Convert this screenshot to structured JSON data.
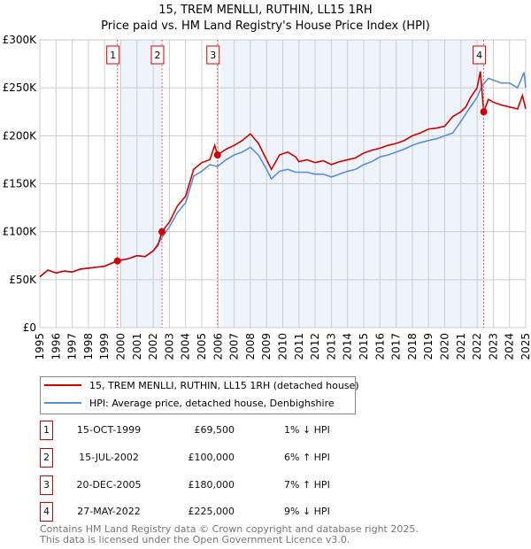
{
  "chart_data": {
    "type": "line",
    "title": "15, TREM MENLLI, RUTHIN, LL15 1RH",
    "subtitle": "Price paid vs. HM Land Registry's House Price Index (HPI)",
    "xlim": [
      1995,
      2025
    ],
    "ylim": [
      0,
      300000
    ],
    "x_ticks": [
      "1995",
      "1996",
      "1997",
      "1998",
      "1999",
      "2000",
      "2001",
      "2002",
      "2003",
      "2004",
      "2005",
      "2006",
      "2007",
      "2008",
      "2009",
      "2010",
      "2011",
      "2012",
      "2013",
      "2014",
      "2015",
      "2016",
      "2017",
      "2018",
      "2019",
      "2020",
      "2021",
      "2022",
      "2023",
      "2024",
      "2025"
    ],
    "y_ticks": [
      {
        "v": 0,
        "label": "£0"
      },
      {
        "v": 50000,
        "label": "£50K"
      },
      {
        "v": 100000,
        "label": "£100K"
      },
      {
        "v": 150000,
        "label": "£150K"
      },
      {
        "v": 200000,
        "label": "£200K"
      },
      {
        "v": 250000,
        "label": "£250K"
      },
      {
        "v": 300000,
        "label": "£300K"
      }
    ],
    "grid": true,
    "series": [
      {
        "name": "15, TREM MENLLI, RUTHIN, LL15 1RH (detached house)",
        "color": "#cc0000",
        "x": [
          1995,
          1995.5,
          1996,
          1996.5,
          1997,
          1997.5,
          1998,
          1998.5,
          1999,
          1999.79,
          2000.5,
          2001,
          2001.5,
          2002,
          2002.3,
          2002.54,
          2003,
          2003.5,
          2004,
          2004.5,
          2005,
          2005.5,
          2005.8,
          2005.97,
          2006.5,
          2007,
          2007.5,
          2008,
          2008.5,
          2009,
          2009.3,
          2009.8,
          2010.3,
          2010.8,
          2011,
          2011.5,
          2012,
          2012.5,
          2013,
          2013.5,
          2014,
          2014.5,
          2015,
          2015.5,
          2016,
          2016.5,
          2017,
          2017.5,
          2018,
          2018.5,
          2019,
          2019.5,
          2020,
          2020.5,
          2021,
          2021.3,
          2021.6,
          2022,
          2022.2,
          2022.41,
          2022.7,
          2023,
          2023.5,
          2024,
          2024.5,
          2024.8,
          2025
        ],
        "y": [
          53000,
          60000,
          57000,
          59000,
          58000,
          61000,
          62000,
          63000,
          64000,
          69500,
          72000,
          75000,
          74000,
          80000,
          86000,
          100000,
          110000,
          127000,
          137000,
          165000,
          172000,
          175000,
          190000,
          180000,
          186000,
          190000,
          195000,
          202000,
          192000,
          175000,
          165000,
          180000,
          183000,
          178000,
          173000,
          175000,
          172000,
          174000,
          170000,
          173000,
          175000,
          177000,
          182000,
          185000,
          187000,
          190000,
          192000,
          195000,
          200000,
          203000,
          207000,
          208000,
          210000,
          220000,
          225000,
          230000,
          240000,
          250000,
          267000,
          225000,
          238000,
          235000,
          232000,
          230000,
          228000,
          242000,
          228000
        ]
      },
      {
        "name": "HPI: Average price, detached house, Denbighshire",
        "color": "#5b8ed6",
        "x": [
          1995,
          1995.5,
          1996,
          1996.5,
          1997,
          1997.5,
          1998,
          1998.5,
          1999,
          1999.79,
          2000.5,
          2001,
          2001.5,
          2002,
          2002.54,
          2003,
          2003.5,
          2004,
          2004.5,
          2005,
          2005.5,
          2005.97,
          2006.5,
          2007,
          2007.5,
          2008,
          2008.5,
          2009,
          2009.3,
          2009.8,
          2010.3,
          2010.8,
          2011,
          2011.5,
          2012,
          2012.5,
          2013,
          2013.5,
          2014,
          2014.5,
          2015,
          2015.5,
          2016,
          2016.5,
          2017,
          2017.5,
          2018,
          2018.5,
          2019,
          2019.5,
          2020,
          2020.5,
          2021,
          2021.5,
          2022,
          2022.3,
          2022.7,
          2023,
          2023.5,
          2024,
          2024.5,
          2024.9,
          2025
        ],
        "y": [
          53000,
          60000,
          57000,
          59000,
          58000,
          61000,
          62000,
          63000,
          64000,
          70000,
          72000,
          75000,
          74000,
          80000,
          94000,
          105000,
          120000,
          130000,
          158000,
          163000,
          170000,
          168000,
          175000,
          180000,
          183000,
          188000,
          180000,
          165000,
          155000,
          163000,
          165000,
          162000,
          162000,
          162000,
          160000,
          160000,
          157000,
          160000,
          163000,
          165000,
          170000,
          173000,
          178000,
          180000,
          183000,
          186000,
          190000,
          193000,
          195000,
          197000,
          200000,
          203000,
          215000,
          228000,
          240000,
          252000,
          260000,
          258000,
          255000,
          255000,
          250000,
          266000,
          250000
        ]
      }
    ],
    "sales": [
      {
        "n": "1",
        "date": "15-OCT-1999",
        "x": 1999.79,
        "price": "£69,500",
        "value": 69500,
        "hpi": "1% ↓ HPI"
      },
      {
        "n": "2",
        "date": "15-JUL-2002",
        "x": 2002.54,
        "price": "£100,000",
        "value": 100000,
        "hpi": "6% ↑ HPI"
      },
      {
        "n": "3",
        "date": "20-DEC-2005",
        "x": 2005.97,
        "price": "£180,000",
        "value": 180000,
        "hpi": "7% ↑ HPI"
      },
      {
        "n": "4",
        "date": "27-MAY-2022",
        "x": 2022.41,
        "price": "£225,000",
        "value": 225000,
        "hpi": "9% ↓ HPI"
      }
    ],
    "legend_placement": "below"
  },
  "footer": {
    "line1": "Contains HM Land Registry data © Crown copyright and database right 2025.",
    "line2": "This data is licensed under the Open Government Licence v3.0."
  }
}
